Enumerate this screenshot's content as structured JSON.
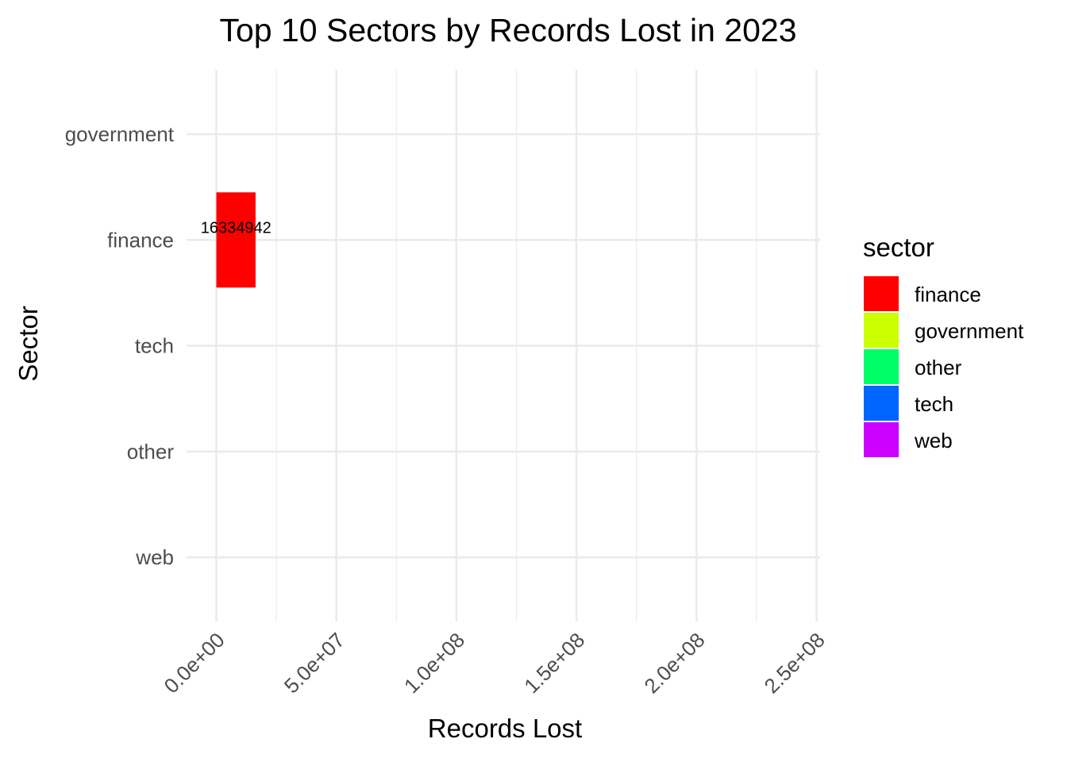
{
  "chart_data": {
    "type": "bar",
    "orientation": "horizontal",
    "title": "Top 10 Sectors by Records Lost in 2023",
    "xlabel": "Records Lost",
    "ylabel": "Sector",
    "categories": [
      "government",
      "finance",
      "tech",
      "other",
      "web"
    ],
    "values": [
      0,
      16334942,
      0,
      0,
      0
    ],
    "data_labels": [
      "",
      "16334942",
      "",
      "",
      ""
    ],
    "xlim": [
      0,
      250000000
    ],
    "xticks": [
      0,
      50000000,
      100000000,
      150000000,
      200000000,
      250000000
    ],
    "xtick_labels": [
      "0.0e+00",
      "5.0e+07",
      "1.0e+08",
      "1.5e+08",
      "2.0e+08",
      "2.5e+08"
    ],
    "grid": true,
    "legend": {
      "title": "sector",
      "placement": "right",
      "items": [
        {
          "label": "finance",
          "color": "#ff0000"
        },
        {
          "label": "government",
          "color": "#ccff00"
        },
        {
          "label": "other",
          "color": "#00ff66"
        },
        {
          "label": "tech",
          "color": "#0066ff"
        },
        {
          "label": "web",
          "color": "#cc00ff"
        }
      ]
    }
  }
}
